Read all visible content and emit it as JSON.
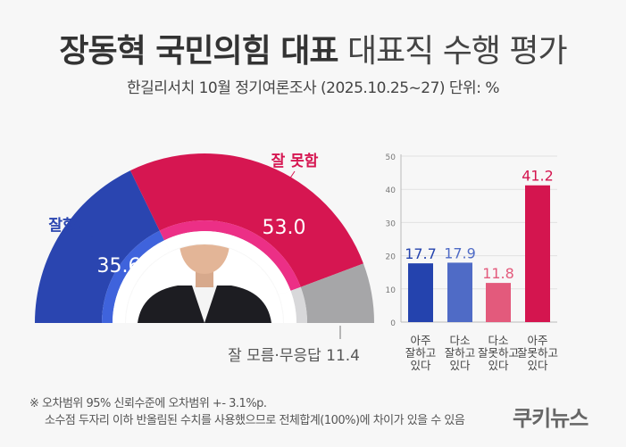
{
  "header": {
    "title_bold": "장동혁 국민의힘 대표",
    "title_light": "대표직 수행 평가",
    "subtitle": "한길리서치 10월 정기여론조사 (2025.10.25~27) 단위: %"
  },
  "chart_data": [
    {
      "type": "pie",
      "style": "semicircle-donut",
      "categories": [
        "잘함",
        "잘 못함",
        "잘 모름·무응답"
      ],
      "values": [
        35.6,
        53.0,
        11.4
      ],
      "labels": [
        "35.6",
        "53.0",
        "11.4"
      ],
      "colors": [
        "#2a45b0",
        "#d61651",
        "#a6a6a8"
      ]
    },
    {
      "type": "bar",
      "categories": [
        "아주 잘하고 있다",
        "다소 잘하고 있다",
        "다소 잘못하고 있다",
        "아주 잘못하고 있다"
      ],
      "category_lines": [
        [
          "아주",
          "잘하고",
          "있다"
        ],
        [
          "다소",
          "잘하고",
          "있다"
        ],
        [
          "다소",
          "잘못하고",
          "있다"
        ],
        [
          "아주",
          "잘못하고",
          "있다"
        ]
      ],
      "values": [
        17.7,
        17.9,
        11.8,
        41.2
      ],
      "labels": [
        "17.7",
        "17.9",
        "11.8",
        "41.2"
      ],
      "colors": [
        "#2443ae",
        "#4f6bc6",
        "#e35a7c",
        "#d4154f"
      ],
      "ylim": [
        0,
        50
      ],
      "yticks": [
        "0",
        "10",
        "20",
        "30",
        "40",
        "50"
      ],
      "grid": true
    }
  ],
  "donut_labels": {
    "good": "잘함",
    "bad": "잘 못함",
    "unknown": "잘 모름·무응답 11.4"
  },
  "footnote": {
    "line1": "※ 오차범위 95% 신뢰수준에 오차범위 +- 3.1%p.",
    "line2": "소수점 두자리 이하 반올림된 수치를 사용했으므로 전체합계(100%)에 차이가 있을 수 있음"
  },
  "logo": "쿠키뉴스"
}
